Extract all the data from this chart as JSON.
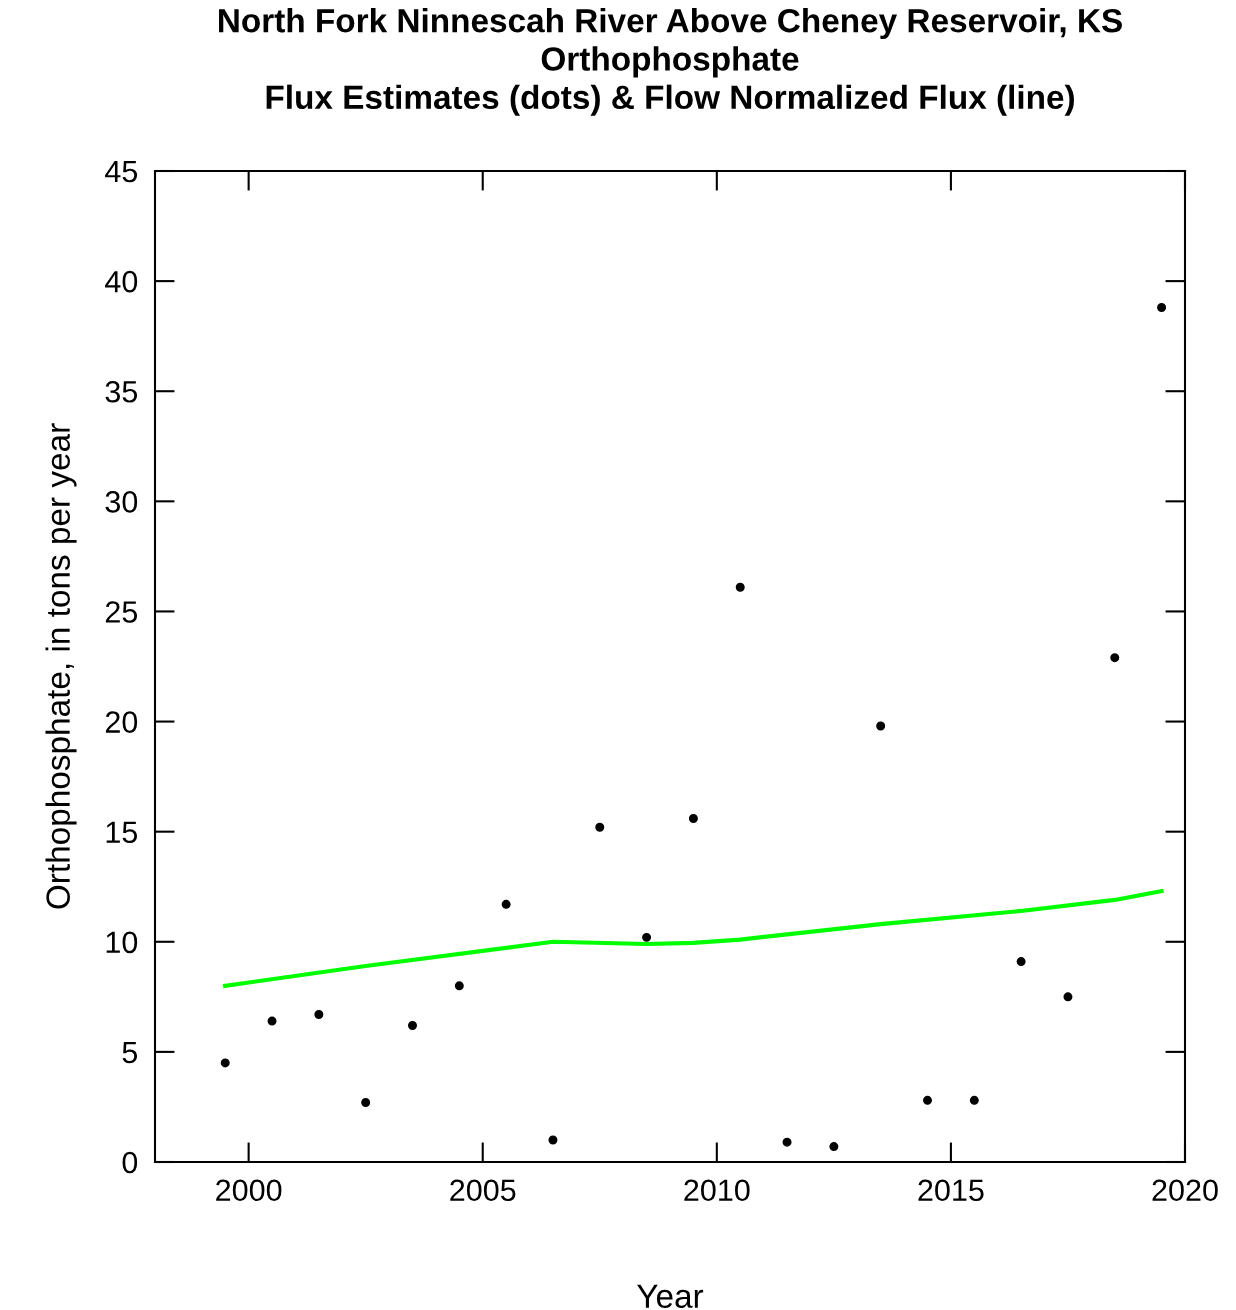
{
  "chart_data": {
    "type": "scatter",
    "title": "North Fork Ninnescah River Above Cheney Reservoir, KS\nOrthophosphate\nFlux Estimates (dots) & Flow Normalized Flux (line)",
    "xlabel": "Year",
    "ylabel": "Orthophosphate, in tons per year",
    "xlim": [
      1998,
      2020
    ],
    "xticks": [
      2000,
      2005,
      2010,
      2015,
      2020
    ],
    "ylim": [
      0,
      45
    ],
    "yticks": [
      0,
      5,
      10,
      15,
      20,
      25,
      30,
      35,
      40,
      45
    ],
    "grid": false,
    "legend": false,
    "series": [
      {
        "color": "#000000",
        "marker": "circle",
        "x": [
          1999.5,
          2000.5,
          2001.5,
          2002.5,
          2003.5,
          2004.5,
          2005.5,
          2006.5,
          2007.5,
          2008.5,
          2009.5,
          2010.5,
          2011.5,
          2012.5,
          2013.5,
          2014.5,
          2015.5,
          2016.5,
          2017.5,
          2018.5,
          2019.5
        ],
        "values": [
          4.5,
          6.4,
          6.7,
          2.7,
          6.2,
          8.0,
          11.7,
          1.0,
          15.2,
          10.2,
          15.6,
          26.1,
          0.9,
          0.7,
          19.8,
          2.8,
          2.8,
          9.1,
          7.5,
          22.9,
          38.8
        ]
      },
      {
        "type": "line",
        "color": "#00ff00",
        "marker": "none",
        "line_style": "solid",
        "x": [
          1999.5,
          2002.5,
          2006.5,
          2008.5,
          2009.5,
          2010.5,
          2013.5,
          2016.5,
          2018.5,
          2019.5
        ],
        "values": [
          8.0,
          8.9,
          10.0,
          9.9,
          9.95,
          10.1,
          10.8,
          11.4,
          11.9,
          12.3
        ]
      }
    ]
  }
}
